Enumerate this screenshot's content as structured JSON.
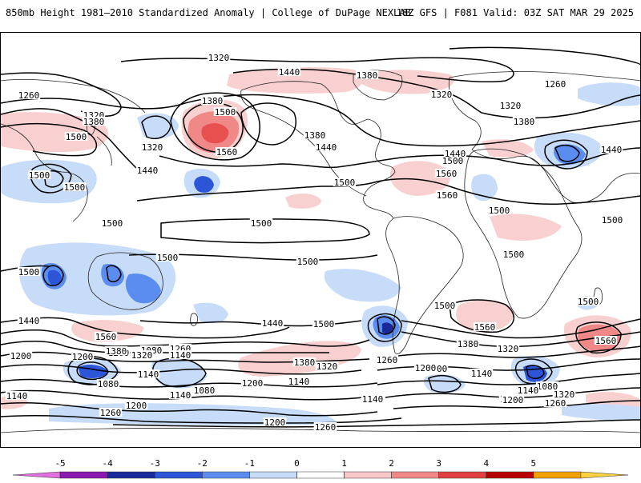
{
  "header": {
    "title": "850mb Height 1981–2010 Standardized Anomaly | College of DuPage NEXLAB",
    "run_info": "18Z GFS | F081 Valid: 03Z SAT MAR 29 2025"
  },
  "contour_labels": [
    {
      "id": "c1",
      "text": "1320"
    },
    {
      "id": "c2",
      "text": "1440"
    },
    {
      "id": "c3",
      "text": "1380"
    },
    {
      "id": "c4",
      "text": "1260"
    },
    {
      "id": "c5",
      "text": "1260"
    },
    {
      "id": "c6",
      "text": "1320"
    },
    {
      "id": "c7",
      "text": "1380"
    },
    {
      "id": "c8",
      "text": "1500"
    },
    {
      "id": "c9",
      "text": "1320"
    },
    {
      "id": "c10",
      "text": "1380"
    },
    {
      "id": "c11",
      "text": "1500"
    },
    {
      "id": "c12",
      "text": "1560"
    },
    {
      "id": "c13",
      "text": "1440"
    },
    {
      "id": "c14",
      "text": "1380"
    },
    {
      "id": "c15",
      "text": "1440"
    },
    {
      "id": "c16",
      "text": "1500"
    },
    {
      "id": "c17",
      "text": "1560"
    },
    {
      "id": "c18",
      "text": "1560"
    },
    {
      "id": "c19",
      "text": "1440"
    },
    {
      "id": "c20",
      "text": "1440"
    },
    {
      "id": "c21",
      "text": "1320"
    },
    {
      "id": "c22",
      "text": "1380"
    },
    {
      "id": "c23",
      "text": "1320"
    },
    {
      "id": "c24",
      "text": "1500"
    },
    {
      "id": "c25",
      "text": "1500"
    },
    {
      "id": "c26",
      "text": "1500"
    },
    {
      "id": "c27",
      "text": "1500"
    },
    {
      "id": "c28",
      "text": "1500"
    },
    {
      "id": "c29",
      "text": "1500"
    },
    {
      "id": "c30",
      "text": "1500"
    },
    {
      "id": "c31",
      "text": "1500"
    },
    {
      "id": "c32",
      "text": "1500"
    },
    {
      "id": "c33",
      "text": "1500"
    },
    {
      "id": "c34",
      "text": "1500"
    },
    {
      "id": "c35",
      "text": "1500"
    },
    {
      "id": "c36",
      "text": "1440"
    },
    {
      "id": "c37",
      "text": "1500"
    },
    {
      "id": "c38",
      "text": "1560"
    },
    {
      "id": "c39",
      "text": "1560"
    },
    {
      "id": "c40",
      "text": "1560"
    },
    {
      "id": "c41",
      "text": "1440"
    },
    {
      "id": "c42",
      "text": "1380"
    },
    {
      "id": "c43",
      "text": "1320"
    },
    {
      "id": "c44",
      "text": "1200"
    },
    {
      "id": "c45",
      "text": "1380"
    },
    {
      "id": "c46",
      "text": "1320"
    },
    {
      "id": "c47",
      "text": "1260"
    },
    {
      "id": "c48",
      "text": "1140"
    },
    {
      "id": "c49",
      "text": "1080"
    },
    {
      "id": "c50",
      "text": "1200"
    },
    {
      "id": "c51",
      "text": "1140"
    },
    {
      "id": "c52",
      "text": "1260"
    },
    {
      "id": "c53",
      "text": "1200"
    },
    {
      "id": "c54",
      "text": "1140"
    },
    {
      "id": "c55",
      "text": "1260"
    },
    {
      "id": "c56",
      "text": "1380"
    },
    {
      "id": "c57",
      "text": "1320"
    },
    {
      "id": "c58",
      "text": "1200"
    },
    {
      "id": "c59",
      "text": "1140"
    },
    {
      "id": "c60",
      "text": "1200"
    },
    {
      "id": "c61",
      "text": "1260"
    },
    {
      "id": "c62",
      "text": "1080"
    },
    {
      "id": "c63",
      "text": "1140"
    },
    {
      "id": "c64",
      "text": "1200"
    },
    {
      "id": "c65",
      "text": "1080"
    },
    {
      "id": "c66",
      "text": "1320"
    },
    {
      "id": "c67",
      "text": "1260"
    },
    {
      "id": "c68",
      "text": "1140"
    },
    {
      "id": "c69",
      "text": "1200"
    },
    {
      "id": "c70",
      "text": "1140"
    },
    {
      "id": "c71",
      "text": "1200"
    },
    {
      "id": "c72",
      "text": "1260"
    },
    {
      "id": "c73",
      "text": "1080"
    },
    {
      "id": "c74",
      "text": "1200"
    },
    {
      "id": "c75",
      "text": "1260"
    },
    {
      "id": "c76",
      "text": "1500"
    },
    {
      "id": "c77",
      "text": "1140"
    },
    {
      "id": "c78",
      "text": "1320"
    },
    {
      "id": "c79",
      "text": "1260"
    }
  ],
  "colorbar": {
    "tick_labels": [
      "-5",
      "-4",
      "-3",
      "-2",
      "-1",
      "0",
      "1",
      "2",
      "3",
      "4",
      "5"
    ],
    "colors": [
      "#e070e0",
      "#8a1ab0",
      "#1a2a9c",
      "#2c55d8",
      "#5b8cf0",
      "#c6dcf8",
      "#ffffff",
      "#f8c8c8",
      "#f08888",
      "#e04040",
      "#b80000",
      "#f0a000",
      "#f8d040"
    ]
  }
}
